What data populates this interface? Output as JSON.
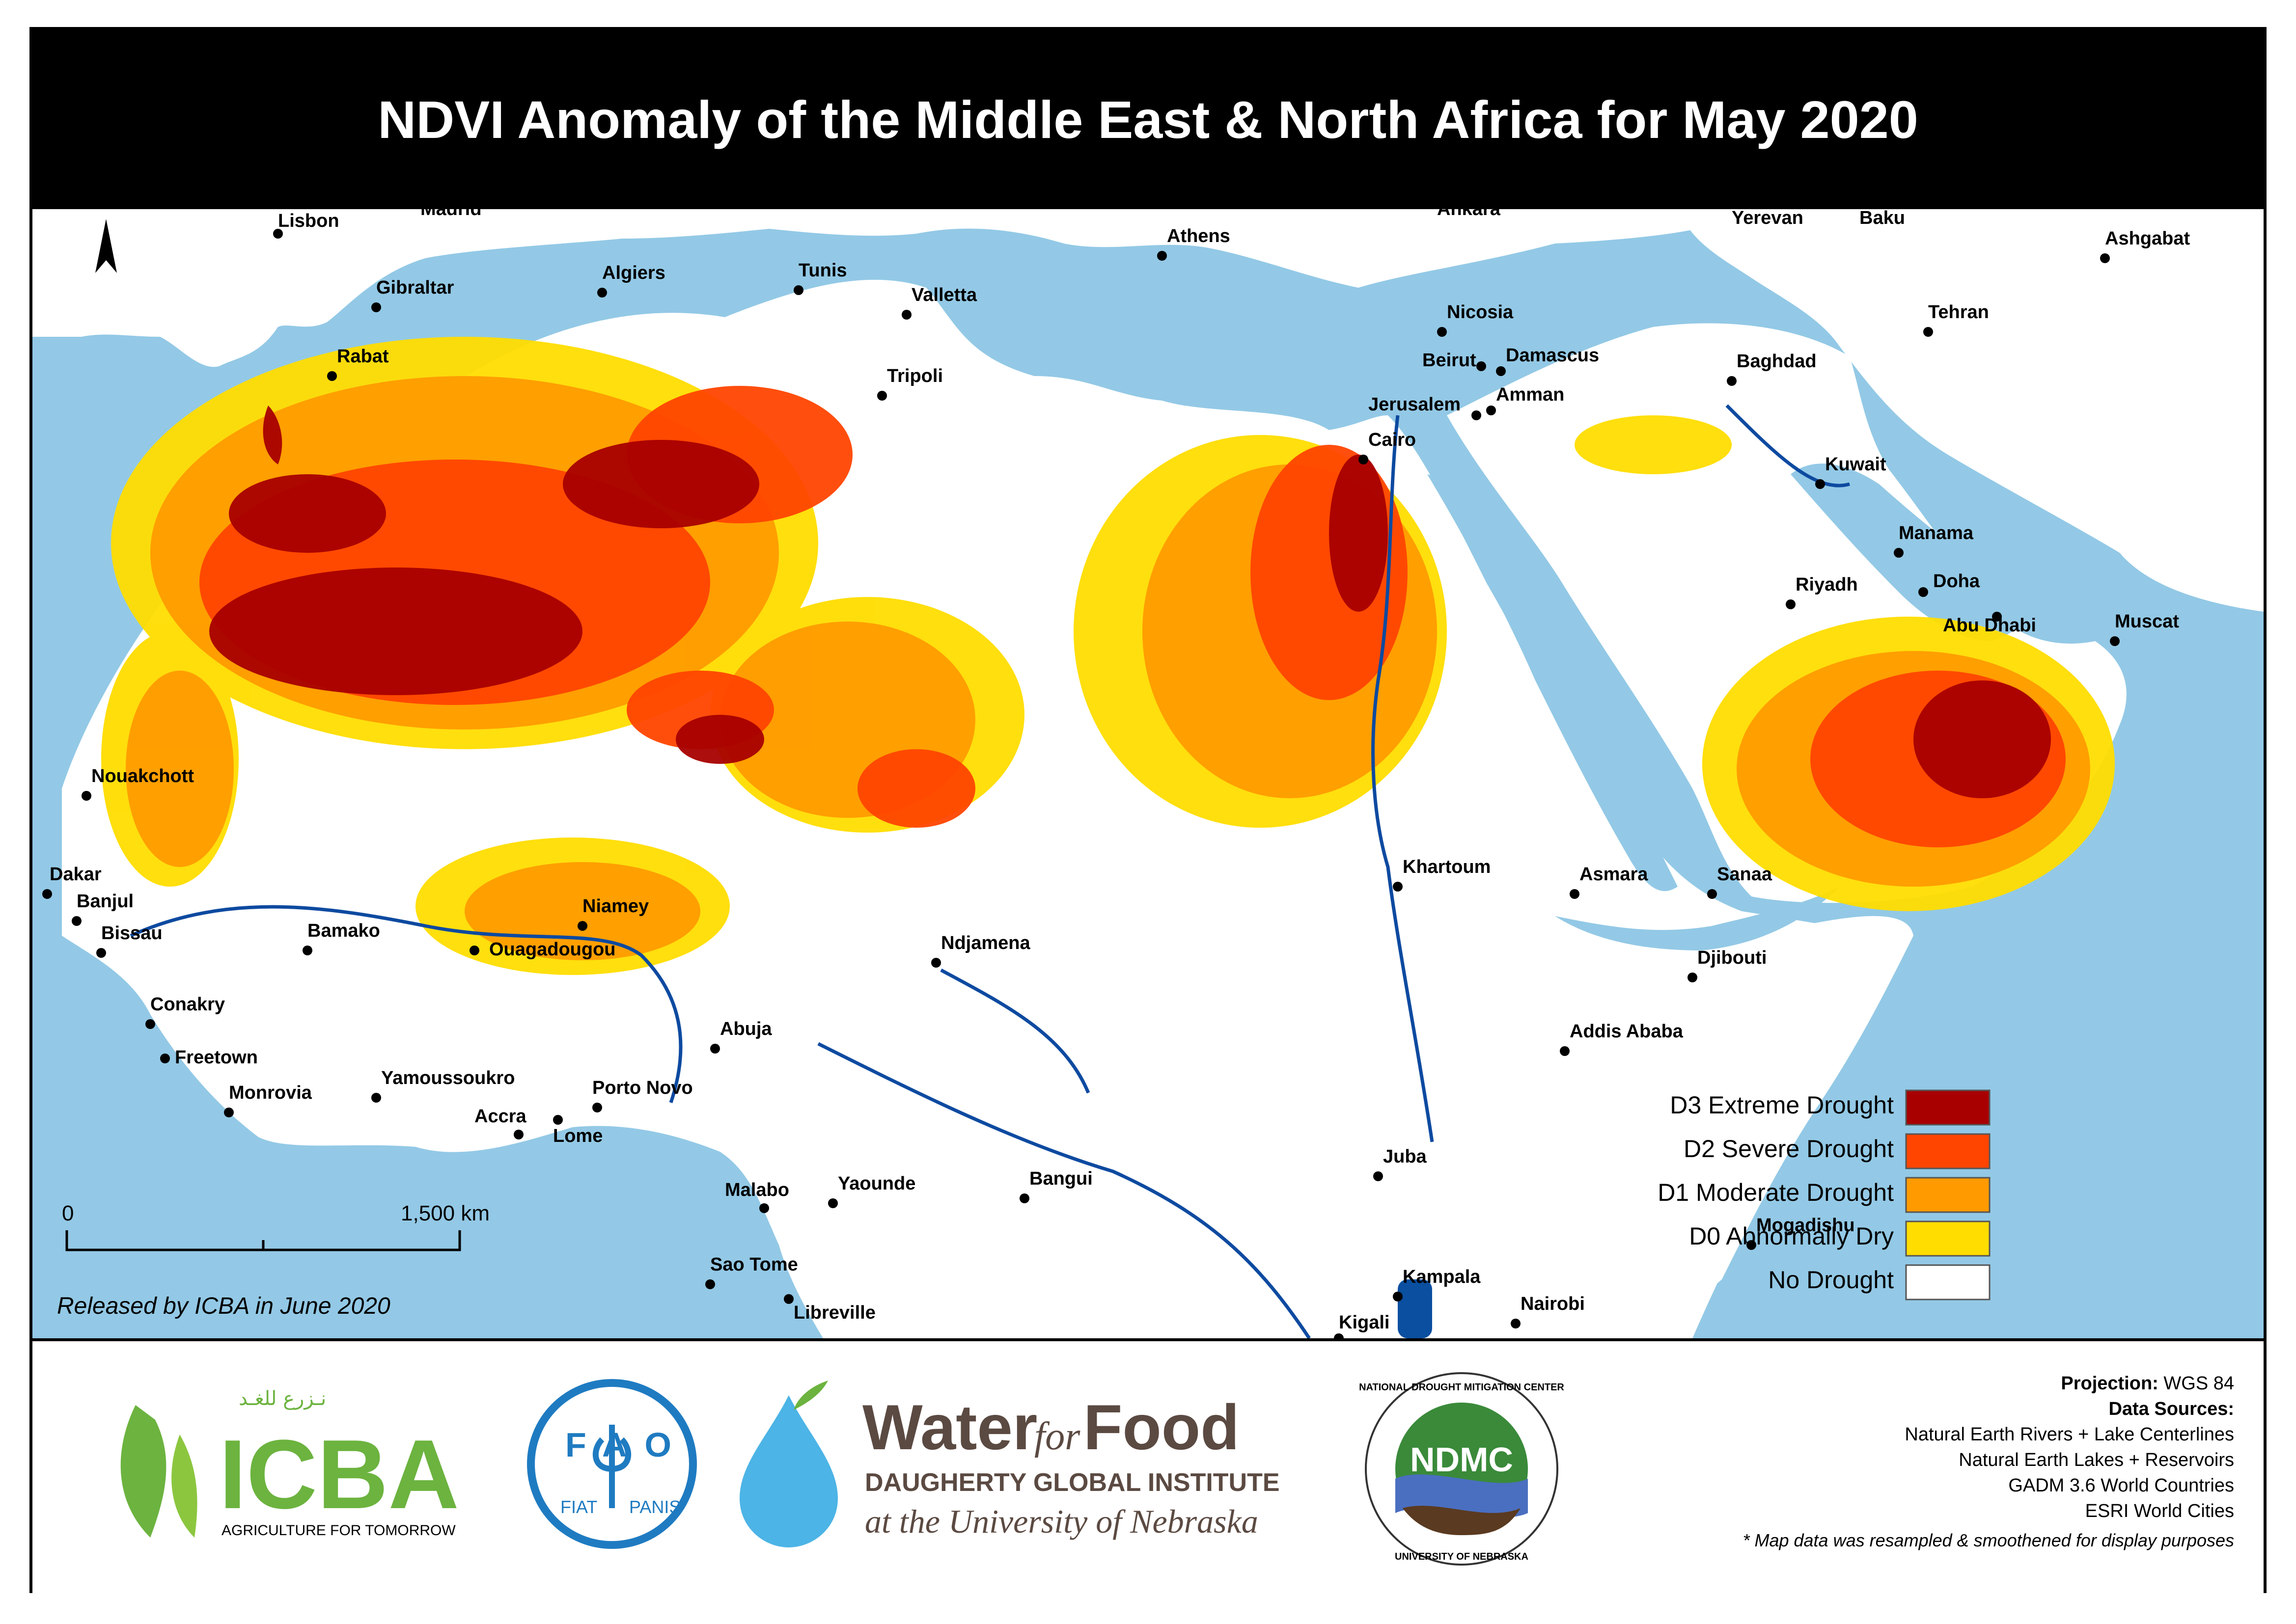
{
  "title": "NDVI Anomaly of the Middle East & North Africa for May 2020",
  "north_arrow_icon": "north-arrow-icon",
  "cities": [
    {
      "name": "Lisbon"
    },
    {
      "name": "Madrid"
    },
    {
      "name": "Gibraltar"
    },
    {
      "name": "Algiers"
    },
    {
      "name": "Tunis"
    },
    {
      "name": "Valletta"
    },
    {
      "name": "Rabat"
    },
    {
      "name": "Tripoli"
    },
    {
      "name": "Athens"
    },
    {
      "name": "Ankara"
    },
    {
      "name": "Nicosia"
    },
    {
      "name": "Beirut"
    },
    {
      "name": "Damascus"
    },
    {
      "name": "Jerusalem"
    },
    {
      "name": "Amman"
    },
    {
      "name": "Cairo"
    },
    {
      "name": "Yerevan"
    },
    {
      "name": "Baku"
    },
    {
      "name": "Ashgabat"
    },
    {
      "name": "Tehran"
    },
    {
      "name": "Baghdad"
    },
    {
      "name": "Kuwait"
    },
    {
      "name": "Manama"
    },
    {
      "name": "Doha"
    },
    {
      "name": "Riyadh"
    },
    {
      "name": "Abu Dhabi"
    },
    {
      "name": "Muscat"
    },
    {
      "name": "Nouakchott"
    },
    {
      "name": "Dakar"
    },
    {
      "name": "Banjul"
    },
    {
      "name": "Bissau"
    },
    {
      "name": "Bamako"
    },
    {
      "name": "Niamey"
    },
    {
      "name": "Ouagadougou"
    },
    {
      "name": "Conakry"
    },
    {
      "name": "Freetown"
    },
    {
      "name": "Monrovia"
    },
    {
      "name": "Yamoussoukro"
    },
    {
      "name": "Accra"
    },
    {
      "name": "Lome"
    },
    {
      "name": "Porto Novo"
    },
    {
      "name": "Abuja"
    },
    {
      "name": "Ndjamena"
    },
    {
      "name": "Khartoum"
    },
    {
      "name": "Asmara"
    },
    {
      "name": "Sanaa"
    },
    {
      "name": "Djibouti"
    },
    {
      "name": "Addis Ababa"
    },
    {
      "name": "Malabo"
    },
    {
      "name": "Yaounde"
    },
    {
      "name": "Bangui"
    },
    {
      "name": "Juba"
    },
    {
      "name": "Sao Tome"
    },
    {
      "name": "Libreville"
    },
    {
      "name": "Kampala"
    },
    {
      "name": "Kigali"
    },
    {
      "name": "Nairobi"
    },
    {
      "name": "Mogadishu"
    }
  ],
  "scale": {
    "start": "0",
    "end": "1,500 km"
  },
  "release_note": "Released by ICBA in June 2020",
  "legend": [
    {
      "label": "D3 Extreme Drought",
      "color": "#a80000"
    },
    {
      "label": "D2 Severe Drought",
      "color": "#ff4500"
    },
    {
      "label": "D1 Moderate Drought",
      "color": "#ff9b00"
    },
    {
      "label": "D0 Abnormally Dry",
      "color": "#ffdd00"
    },
    {
      "label": "No Drought",
      "color": "#ffffff"
    }
  ],
  "colors": {
    "water": "#93c9e6",
    "land_outside": "#ffffff",
    "rivers": "#0d4aa0"
  },
  "logos": {
    "icba": {
      "name": "ICBA",
      "arabic": "نـزرع للغـد",
      "tagline": "AGRICULTURE FOR TOMORROW"
    },
    "fao": {
      "letters": "FAO",
      "motto_left": "FIAT",
      "motto_right": "PANIS"
    },
    "wff": {
      "water": "Water",
      "for": "for",
      "food": "Food",
      "line2": "DAUGHERTY GLOBAL INSTITUTE",
      "line3": "at the University of Nebraska"
    },
    "ndmc": {
      "center": "NDMC",
      "ring_top": "NATIONAL DROUGHT MITIGATION CENTER",
      "ring_bottom": "UNIVERSITY OF NEBRASKA"
    }
  },
  "credits": {
    "projection_label": "Projection:",
    "projection_value": "WGS 84",
    "sources_label": "Data Sources:",
    "sources": [
      "Natural Earth Rivers + Lake Centerlines",
      "Natural Earth Lakes + Reservoirs",
      "GADM 3.6 World Countries",
      "ESRI World Cities"
    ],
    "note": "* Map data was resampled & smoothened for display purposes"
  }
}
